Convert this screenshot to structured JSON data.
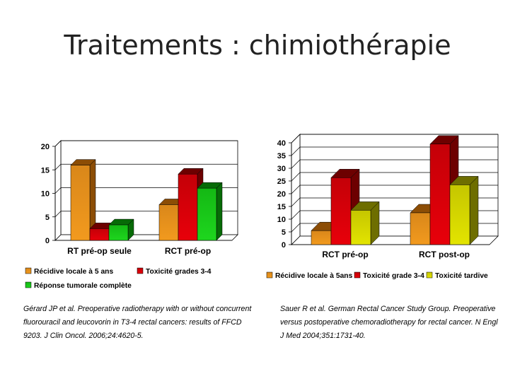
{
  "title": "Traitements : chimiothérapie",
  "colors": {
    "orange_front": "#f29a1e",
    "orange_top": "#d9871a",
    "orange_side": "#8c4d05",
    "red_front": "#e8000a",
    "red_top": "#c40008",
    "red_side": "#6d0000",
    "green_front": "#1ed61e",
    "green_top": "#14b814",
    "green_side": "#076b07",
    "yellow_front": "#e3e400",
    "yellow_top": "#c5c600",
    "yellow_side": "#6e6e00"
  },
  "chart_data": [
    {
      "type": "bar",
      "categories": [
        "RT pré-op seule",
        "RCT pré-op"
      ],
      "series": [
        {
          "name": "Récidive locale à 5 ans",
          "values": [
            16,
            7.6
          ],
          "color": "orange"
        },
        {
          "name": "Toxicité grades 3-4",
          "values": [
            2.5,
            14.1
          ],
          "color": "red"
        },
        {
          "name": "Réponse tumorale complète",
          "values": [
            3.3,
            11.1
          ],
          "color": "green"
        }
      ],
      "yticks": [
        0,
        5,
        10,
        15,
        20
      ],
      "ylim": [
        0,
        20
      ],
      "grid": true,
      "legend": "bottom"
    },
    {
      "type": "bar",
      "categories": [
        "RCT pré-op",
        "RCT post-op"
      ],
      "series": [
        {
          "name": "Récidive locale à 5ans",
          "values": [
            5.5,
            12.5
          ],
          "color": "orange"
        },
        {
          "name": "Toxicité grade 3-4",
          "values": [
            26.3,
            39.5
          ],
          "color": "red"
        },
        {
          "name": "Toxicité tardive",
          "values": [
            13.5,
            23.5
          ],
          "color": "yellow"
        }
      ],
      "yticks": [
        0,
        5,
        10,
        15,
        20,
        25,
        30,
        35,
        40
      ],
      "ylim": [
        0,
        40
      ],
      "grid": true,
      "legend": "bottom"
    }
  ],
  "references": [
    "Gérard JP et al. Preoperative radiotherapy with or without concurrent fluorouracil and leucovorin in T3-4 rectal cancers: results of FFCD 9203. J Clin Oncol. 2006;24:4620-5.",
    "Sauer R et al. German Rectal Cancer Study Group. Preoperative versus postoperative chemoradiotherapy for rectal cancer. N Engl J Med 2004;351:1731-40."
  ]
}
